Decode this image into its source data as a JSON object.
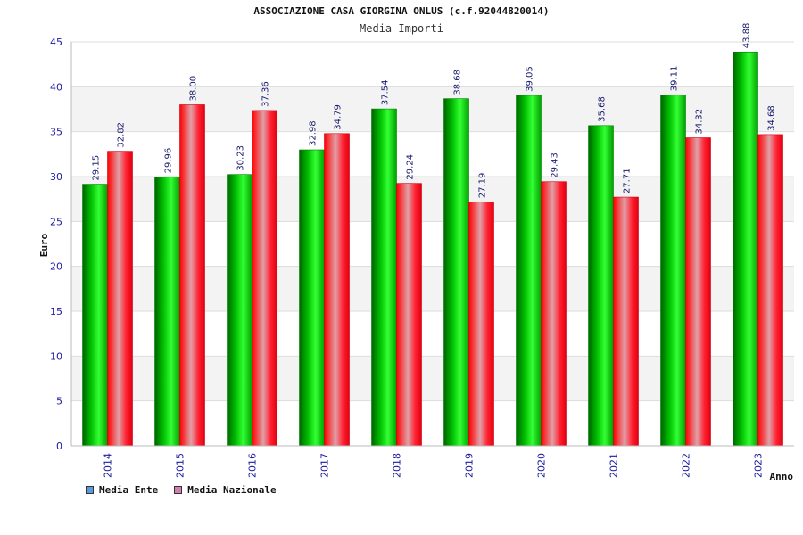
{
  "chart_data": {
    "type": "bar",
    "title": "ASSOCIAZIONE CASA GIORGINA ONLUS (c.f.92044820014)",
    "subtitle": "Media Importi",
    "xlabel": "Anno",
    "ylabel": "Euro",
    "ylim": [
      0,
      45
    ],
    "yticks": [
      0,
      5,
      10,
      15,
      20,
      25,
      30,
      35,
      40,
      45
    ],
    "grid": true,
    "legend_position": "bottom-left",
    "categories": [
      "2014",
      "2015",
      "2016",
      "2017",
      "2018",
      "2019",
      "2020",
      "2021",
      "2022",
      "2023"
    ],
    "series": [
      {
        "name": "Media Ente",
        "values": [
          29.15,
          29.96,
          30.23,
          32.98,
          37.54,
          38.68,
          39.05,
          35.68,
          39.11,
          43.88
        ],
        "labels": [
          "29.15",
          "29.96",
          "30.23",
          "32.98",
          "37.54",
          "38.68",
          "39.05",
          "35.68",
          "39.11",
          "43.88"
        ],
        "color": "#00b000",
        "legend_color": "#5b9bd5"
      },
      {
        "name": "Media Nazionale",
        "values": [
          32.82,
          38.0,
          37.36,
          34.79,
          29.24,
          27.19,
          29.43,
          27.71,
          34.32,
          34.68
        ],
        "labels": [
          "32.82",
          "38.00",
          "37.36",
          "34.79",
          "29.24",
          "27.19",
          "29.43",
          "27.71",
          "34.32",
          "34.68"
        ],
        "color": "#e8001c",
        "legend_color": "#d080b0"
      }
    ]
  }
}
